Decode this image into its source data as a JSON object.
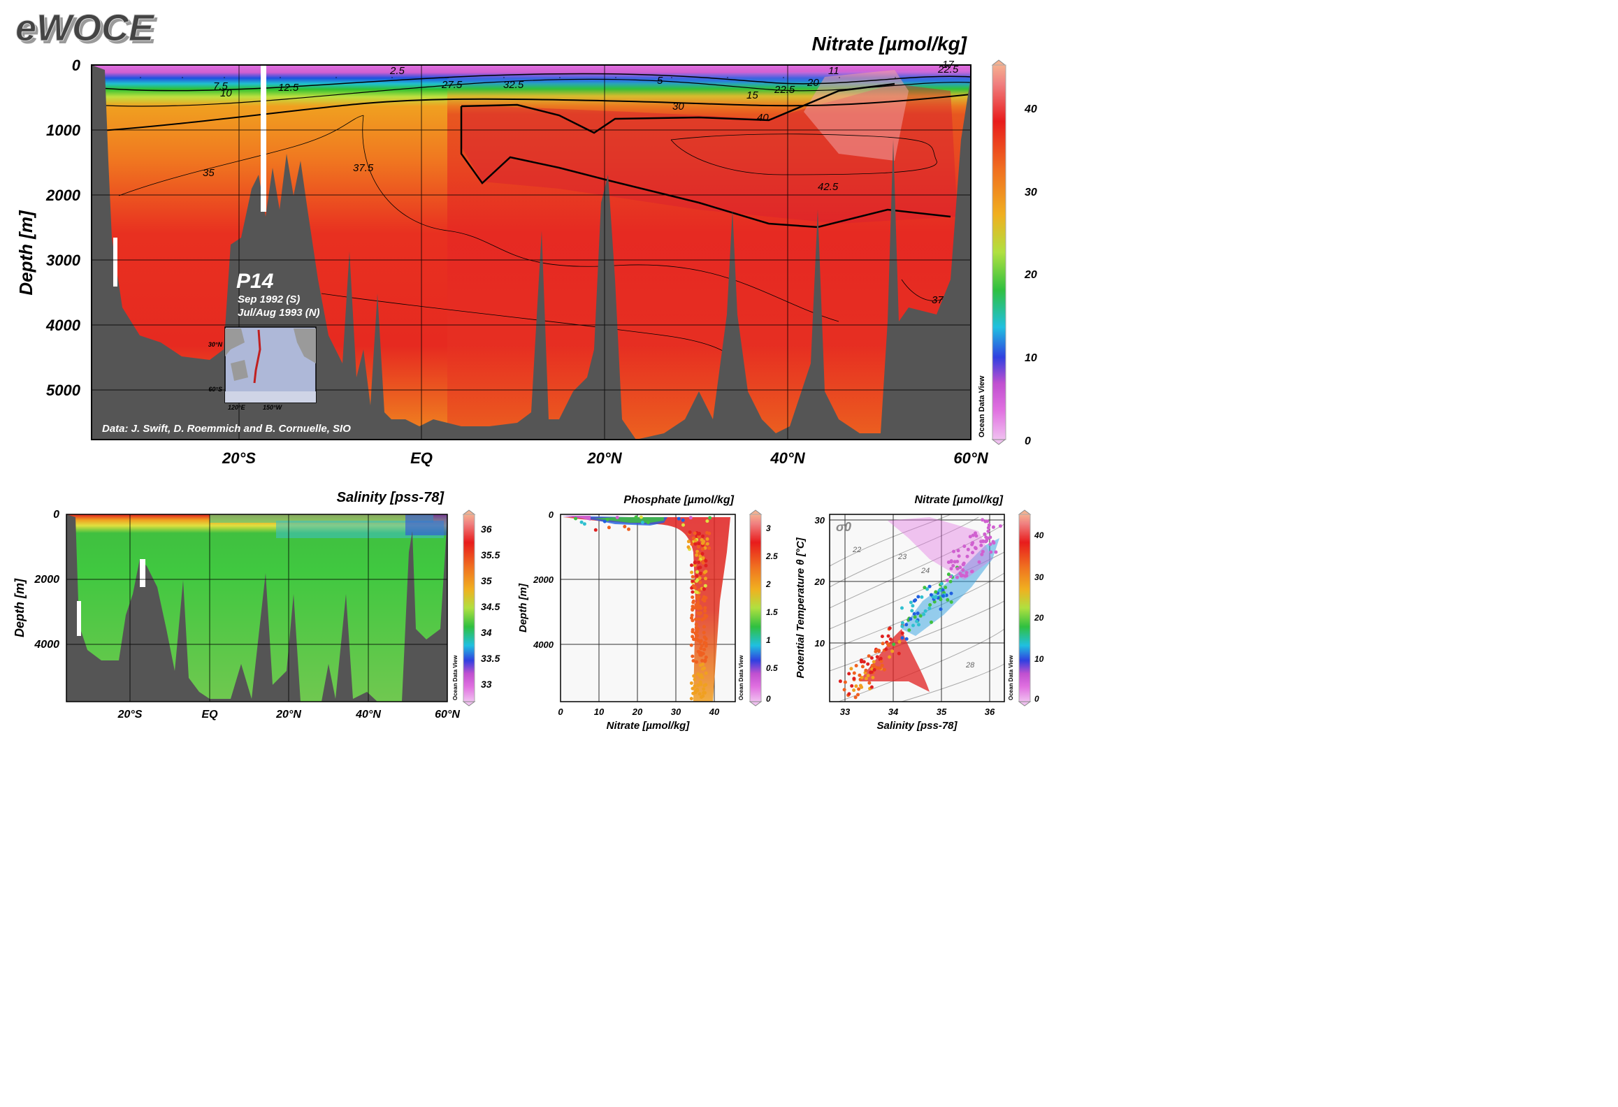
{
  "logo": "eWOCE",
  "main": {
    "title": "Nitrate [µmol/kg]",
    "ylabel": "Depth [m]",
    "yticks": [
      "0",
      "1000",
      "2000",
      "3000",
      "4000",
      "5000"
    ],
    "xticks": [
      "20°S",
      "EQ",
      "20°N",
      "40°N",
      "60°N"
    ],
    "colorbar_ticks": [
      "0",
      "10",
      "20",
      "30",
      "40"
    ],
    "colorbar_brand": "Ocean Data View",
    "contour_labels": [
      "2.5",
      "5",
      "7.5",
      "10",
      "12.5",
      "11",
      "15",
      "17",
      "20",
      "22.5",
      "22.5",
      "27.5",
      "30",
      "32.5",
      "35",
      "37.5",
      "40",
      "42.5",
      "37"
    ],
    "section_name": "P14",
    "section_dates": [
      "Sep 1992 (S)",
      "Jul/Aug 1993 (N)"
    ],
    "inset_map": {
      "lat_labels": [
        "30°N",
        "60°S"
      ],
      "lon_labels": [
        "120°E",
        "150°W"
      ]
    },
    "credit": "Data: J. Swift, D. Roemmich and B. Cornuelle, SIO"
  },
  "salinity": {
    "title": "Salinity [pss-78]",
    "ylabel": "Depth [m]",
    "yticks": [
      "0",
      "2000",
      "4000"
    ],
    "xticks": [
      "20°S",
      "EQ",
      "20°N",
      "40°N",
      "60°N"
    ],
    "colorbar_ticks": [
      "36",
      "35.5",
      "35",
      "34.5",
      "34",
      "33.5",
      "33"
    ],
    "colorbar_brand": "Ocean Data View"
  },
  "phosphate": {
    "title": "Phosphate [µmol/kg]",
    "ylabel": "Depth [m]",
    "xlabel": "Nitrate [µmol/kg]",
    "yticks": [
      "0",
      "2000",
      "4000"
    ],
    "xticks": [
      "0",
      "10",
      "20",
      "30",
      "40"
    ],
    "colorbar_ticks": [
      "3",
      "2.5",
      "2",
      "1.5",
      "1",
      "0.5",
      "0"
    ],
    "colorbar_brand": "Ocean Data View"
  },
  "ts": {
    "title": "Nitrate [µmol/kg]",
    "ylabel": "Potential Temperature θ [°C]",
    "xlabel": "Salinity [pss-78]",
    "yticks": [
      "30",
      "20",
      "10"
    ],
    "xticks": [
      "33",
      "34",
      "35",
      "36"
    ],
    "sigma_label": "σ0",
    "isopycnal_labels": [
      "22",
      "23",
      "24",
      "28"
    ],
    "colorbar_ticks": [
      "40",
      "30",
      "20",
      "10",
      "0"
    ],
    "colorbar_brand": "Ocean Data View"
  },
  "colors": {
    "seafloor": "#555555",
    "nitrate_deep": "#e81c1c",
    "nitrate_mid": "#f58a1e",
    "surface_low": "#e066e0"
  },
  "chart_data": [
    {
      "type": "heatmap",
      "title": "Nitrate [µmol/kg]",
      "xlabel": "",
      "ylabel": "Depth [m]",
      "x_ticks": [
        "20°S",
        "EQ",
        "20°N",
        "40°N",
        "60°N"
      ],
      "y_range": [
        0,
        5800
      ],
      "color_range": [
        0,
        45
      ],
      "contour_levels": [
        2.5,
        5,
        7.5,
        10,
        12.5,
        15,
        17,
        20,
        22.5,
        27.5,
        30,
        32.5,
        35,
        37,
        37.5,
        40,
        42.5
      ]
    },
    {
      "type": "heatmap",
      "title": "Salinity [pss-78]",
      "ylabel": "Depth [m]",
      "x_ticks": [
        "20°S",
        "EQ",
        "20°N",
        "40°N",
        "60°N"
      ],
      "y_range": [
        0,
        5800
      ],
      "color_range": [
        32.7,
        36.3
      ]
    },
    {
      "type": "scatter",
      "title": "Phosphate [µmol/kg]",
      "xlabel": "Nitrate [µmol/kg]",
      "ylabel": "Depth [m]",
      "xlim": [
        0,
        46
      ],
      "ylim": [
        5800,
        0
      ],
      "color_range": [
        0,
        3.4
      ]
    },
    {
      "type": "scatter",
      "title": "Nitrate [µmol/kg]",
      "xlabel": "Salinity [pss-78]",
      "ylabel": "Potential Temperature θ [°C]",
      "xlim": [
        32.7,
        36.3
      ],
      "ylim": [
        0,
        31
      ],
      "color_range": [
        0,
        45
      ]
    }
  ]
}
